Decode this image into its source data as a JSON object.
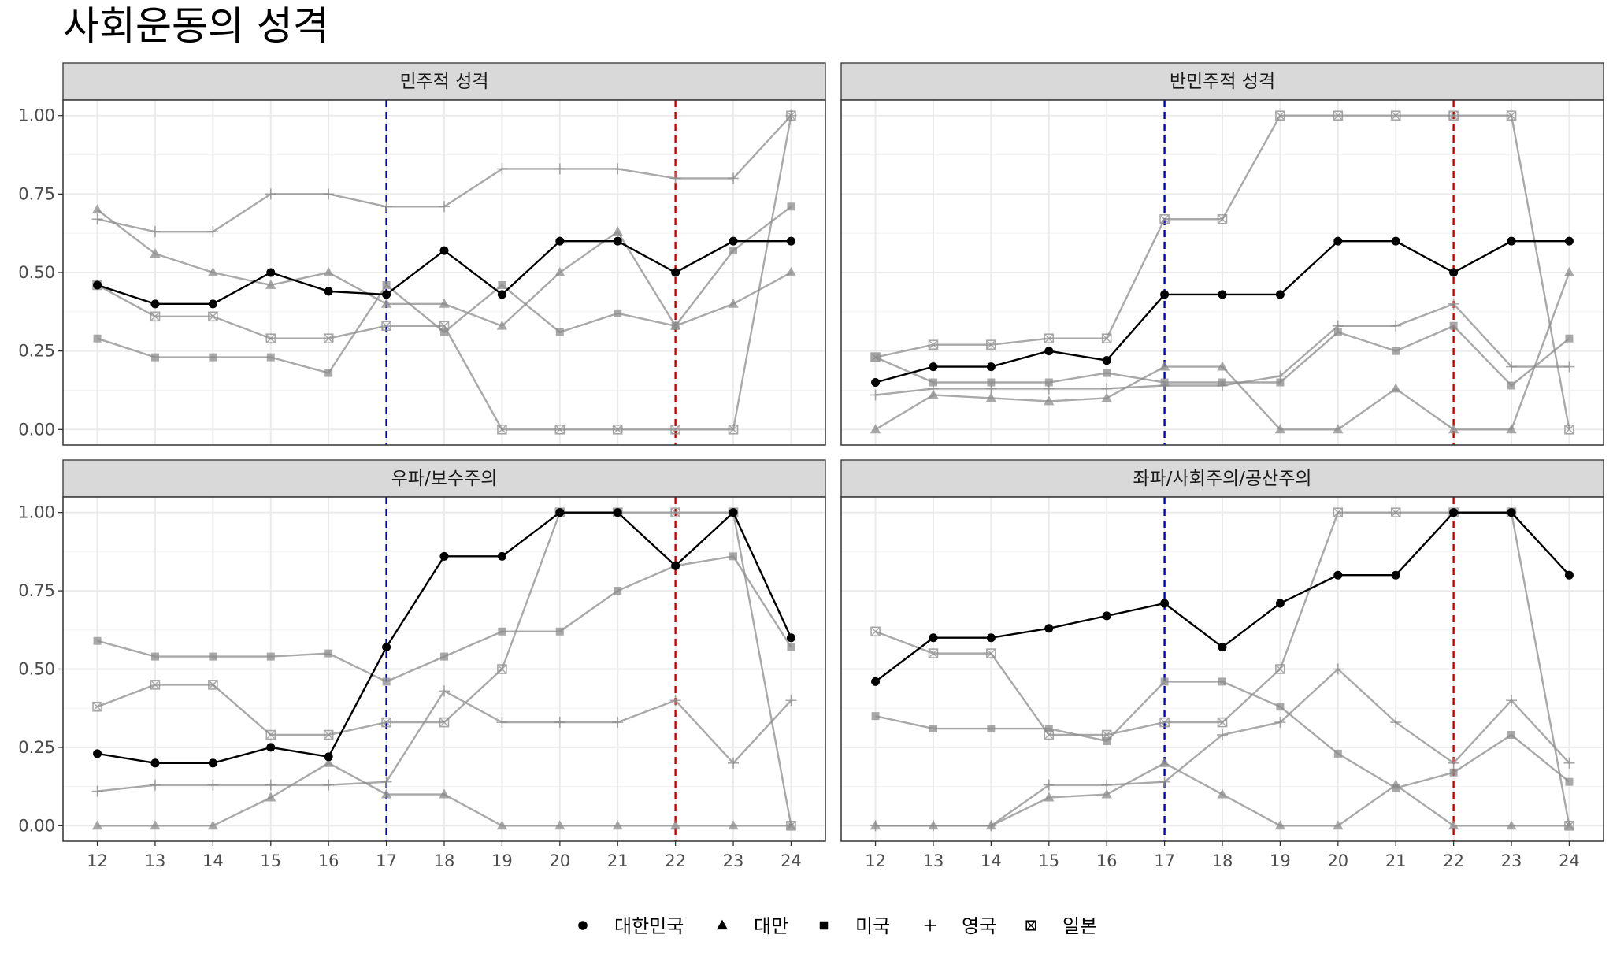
{
  "title": "사회운동의 성격",
  "colors": {
    "korea": "#000000",
    "others": "#8c8c8c",
    "vline_blue": "#0000cc",
    "vline_red": "#cc0000",
    "strip_bg": "#d9d9d9",
    "grid": "#ebebeb"
  },
  "legend": [
    {
      "label": "대한민국",
      "shape": "circle"
    },
    {
      "label": "대만",
      "shape": "triangle"
    },
    {
      "label": "미국",
      "shape": "square"
    },
    {
      "label": "영국",
      "shape": "plus"
    },
    {
      "label": "일본",
      "shape": "boxx"
    }
  ],
  "chart_data": {
    "type": "line",
    "x": [
      12,
      13,
      14,
      15,
      16,
      17,
      18,
      19,
      20,
      21,
      22,
      23,
      24
    ],
    "ylim": [
      0,
      1
    ],
    "yticks": [
      "0.00",
      "0.25",
      "0.50",
      "0.75",
      "1.00"
    ],
    "vlines": [
      {
        "x": 17,
        "color": "blue"
      },
      {
        "x": 22,
        "color": "red"
      }
    ],
    "panels": [
      {
        "strip": "민주적 성격",
        "series": [
          {
            "name": "대한민국",
            "values": [
              0.46,
              0.4,
              0.4,
              0.5,
              0.44,
              0.43,
              0.57,
              0.43,
              0.6,
              0.6,
              0.5,
              0.6,
              0.6
            ]
          },
          {
            "name": "대만",
            "values": [
              0.7,
              0.56,
              0.5,
              0.46,
              0.5,
              0.4,
              0.4,
              0.33,
              0.5,
              0.63,
              0.33,
              0.4,
              0.5
            ]
          },
          {
            "name": "미국",
            "values": [
              0.29,
              0.23,
              0.23,
              0.23,
              0.18,
              0.46,
              0.31,
              0.46,
              0.31,
              0.37,
              0.33,
              0.57,
              0.71
            ]
          },
          {
            "name": "영국",
            "values": [
              0.67,
              0.63,
              0.63,
              0.75,
              0.75,
              0.71,
              0.71,
              0.83,
              0.83,
              0.83,
              0.8,
              0.8,
              1.0
            ]
          },
          {
            "name": "일본",
            "values": [
              0.46,
              0.36,
              0.36,
              0.29,
              0.29,
              0.33,
              0.33,
              0.0,
              0.0,
              0.0,
              0.0,
              0.0,
              1.0
            ]
          }
        ]
      },
      {
        "strip": "반민주적 성격",
        "series": [
          {
            "name": "대한민국",
            "values": [
              0.15,
              0.2,
              0.2,
              0.25,
              0.22,
              0.43,
              0.43,
              0.43,
              0.6,
              0.6,
              0.5,
              0.6,
              0.6
            ]
          },
          {
            "name": "대만",
            "values": [
              0.0,
              0.11,
              0.1,
              0.09,
              0.1,
              0.2,
              0.2,
              0.0,
              0.0,
              0.13,
              0.0,
              0.0,
              0.5
            ]
          },
          {
            "name": "미국",
            "values": [
              0.23,
              0.15,
              0.15,
              0.15,
              0.18,
              0.15,
              0.15,
              0.15,
              0.31,
              0.25,
              0.33,
              0.14,
              0.29
            ]
          },
          {
            "name": "영국",
            "values": [
              0.11,
              0.13,
              0.13,
              0.13,
              0.13,
              0.14,
              0.14,
              0.17,
              0.33,
              0.33,
              0.4,
              0.2,
              0.2
            ]
          },
          {
            "name": "일본",
            "values": [
              0.23,
              0.27,
              0.27,
              0.29,
              0.29,
              0.67,
              0.67,
              1.0,
              1.0,
              1.0,
              1.0,
              1.0,
              0.0
            ]
          }
        ]
      },
      {
        "strip": "우파/보수주의",
        "series": [
          {
            "name": "대한민국",
            "values": [
              0.23,
              0.2,
              0.2,
              0.25,
              0.22,
              0.57,
              0.86,
              0.86,
              1.0,
              1.0,
              0.83,
              1.0,
              0.6
            ]
          },
          {
            "name": "대만",
            "values": [
              0.0,
              0.0,
              0.0,
              0.09,
              0.2,
              0.1,
              0.1,
              0.0,
              0.0,
              0.0,
              0.0,
              0.0,
              0.0
            ]
          },
          {
            "name": "미국",
            "values": [
              0.59,
              0.54,
              0.54,
              0.54,
              0.55,
              0.46,
              0.54,
              0.62,
              0.62,
              0.75,
              0.83,
              0.86,
              0.57
            ]
          },
          {
            "name": "영국",
            "values": [
              0.11,
              0.13,
              0.13,
              0.13,
              0.13,
              0.14,
              0.43,
              0.33,
              0.33,
              0.33,
              0.4,
              0.2,
              0.4
            ]
          },
          {
            "name": "일본",
            "values": [
              0.38,
              0.45,
              0.45,
              0.29,
              0.29,
              0.33,
              0.33,
              0.5,
              1.0,
              1.0,
              1.0,
              1.0,
              0.0
            ]
          }
        ]
      },
      {
        "strip": "좌파/사회주의/공산주의",
        "series": [
          {
            "name": "대한민국",
            "values": [
              0.46,
              0.6,
              0.6,
              0.63,
              0.67,
              0.71,
              0.57,
              0.71,
              0.8,
              0.8,
              1.0,
              1.0,
              0.8
            ]
          },
          {
            "name": "대만",
            "values": [
              0.0,
              0.0,
              0.0,
              0.09,
              0.1,
              0.2,
              0.1,
              0.0,
              0.0,
              0.13,
              0.0,
              0.0,
              0.0
            ]
          },
          {
            "name": "미국",
            "values": [
              0.35,
              0.31,
              0.31,
              0.31,
              0.27,
              0.46,
              0.46,
              0.38,
              0.23,
              0.12,
              0.17,
              0.29,
              0.14
            ]
          },
          {
            "name": "영국",
            "values": [
              0.0,
              0.0,
              0.0,
              0.13,
              0.13,
              0.14,
              0.29,
              0.33,
              0.5,
              0.33,
              0.2,
              0.4,
              0.2
            ]
          },
          {
            "name": "일본",
            "values": [
              0.62,
              0.55,
              0.55,
              0.29,
              0.29,
              0.33,
              0.33,
              0.5,
              1.0,
              1.0,
              1.0,
              1.0,
              0.0
            ]
          }
        ]
      }
    ]
  }
}
